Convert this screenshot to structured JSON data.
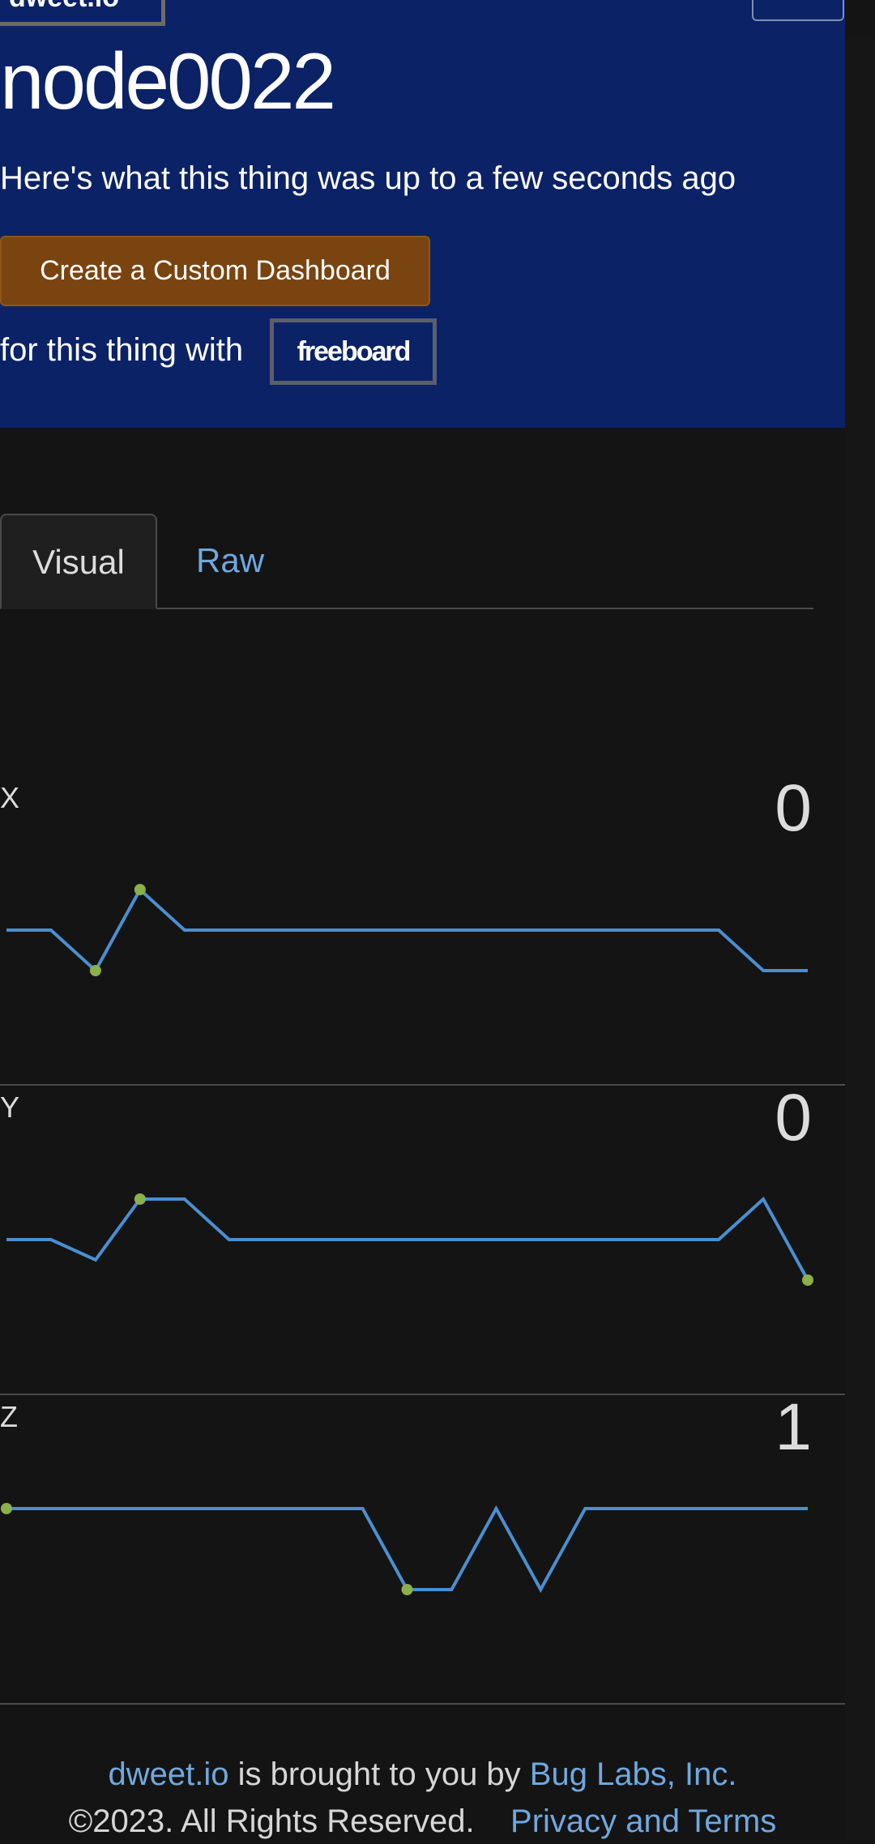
{
  "header": {
    "logo_text": "dweet.io",
    "menu_icon": "hamburger-icon",
    "thing_name": "node0022",
    "subtitle": "Here's what this thing was up to a few seconds ago",
    "dashboard_button_label": "Create a Custom Dashboard",
    "with_text": "for this thing with",
    "freeboard_label": "freeboard",
    "background_color": "#0b2266",
    "button_color": "#7a4410"
  },
  "tabs": [
    {
      "label": "Visual",
      "active": true
    },
    {
      "label": "Raw",
      "active": false
    }
  ],
  "metrics": [
    {
      "label": "X",
      "value": "0"
    },
    {
      "label": "Y",
      "value": "0"
    },
    {
      "label": "Z",
      "value": "1"
    }
  ],
  "chart_data": [
    {
      "type": "line",
      "title": "X",
      "x": [
        1,
        2,
        3,
        4,
        5,
        6,
        7,
        8,
        9,
        10,
        11,
        12,
        13,
        14,
        15,
        16,
        17,
        18,
        19
      ],
      "values": [
        0.5,
        0.5,
        0,
        1,
        0.5,
        0.5,
        0.5,
        0.5,
        0.5,
        0.5,
        0.5,
        0.5,
        0.5,
        0.5,
        0.5,
        0.5,
        0.5,
        0,
        0
      ],
      "ylim": [
        0,
        1
      ],
      "markers": [
        2,
        3
      ],
      "line_color": "#4a8fd0",
      "marker_color": "#8cb04a"
    },
    {
      "type": "line",
      "title": "Y",
      "x": [
        1,
        2,
        3,
        4,
        5,
        6,
        7,
        8,
        9,
        10,
        11,
        12,
        13,
        14,
        15,
        16,
        17,
        18,
        19
      ],
      "values": [
        0.5,
        0.5,
        0.25,
        1,
        1,
        0.5,
        0.5,
        0.5,
        0.5,
        0.5,
        0.5,
        0.5,
        0.5,
        0.5,
        0.5,
        0.5,
        0.5,
        1,
        0
      ],
      "ylim": [
        0,
        1
      ],
      "markers": [
        3,
        18
      ],
      "line_color": "#4a8fd0",
      "marker_color": "#8cb04a"
    },
    {
      "type": "line",
      "title": "Z",
      "x": [
        1,
        2,
        3,
        4,
        5,
        6,
        7,
        8,
        9,
        10,
        11,
        12,
        13,
        14,
        15,
        16,
        17,
        18,
        19
      ],
      "values": [
        1,
        1,
        1,
        1,
        1,
        1,
        1,
        1,
        1,
        0,
        0,
        1,
        0,
        1,
        1,
        1,
        1,
        1,
        1
      ],
      "ylim": [
        0,
        1
      ],
      "markers": [
        0,
        9
      ],
      "line_color": "#4a8fd0",
      "marker_color": "#8cb04a"
    }
  ],
  "footer": {
    "dweet_link": "dweet.io",
    "brought_text": " is brought to you by ",
    "buglabs_link": "Bug Labs, Inc.",
    "copyright": "©2023. All Rights Reserved.",
    "privacy_link": "Privacy and Terms"
  }
}
